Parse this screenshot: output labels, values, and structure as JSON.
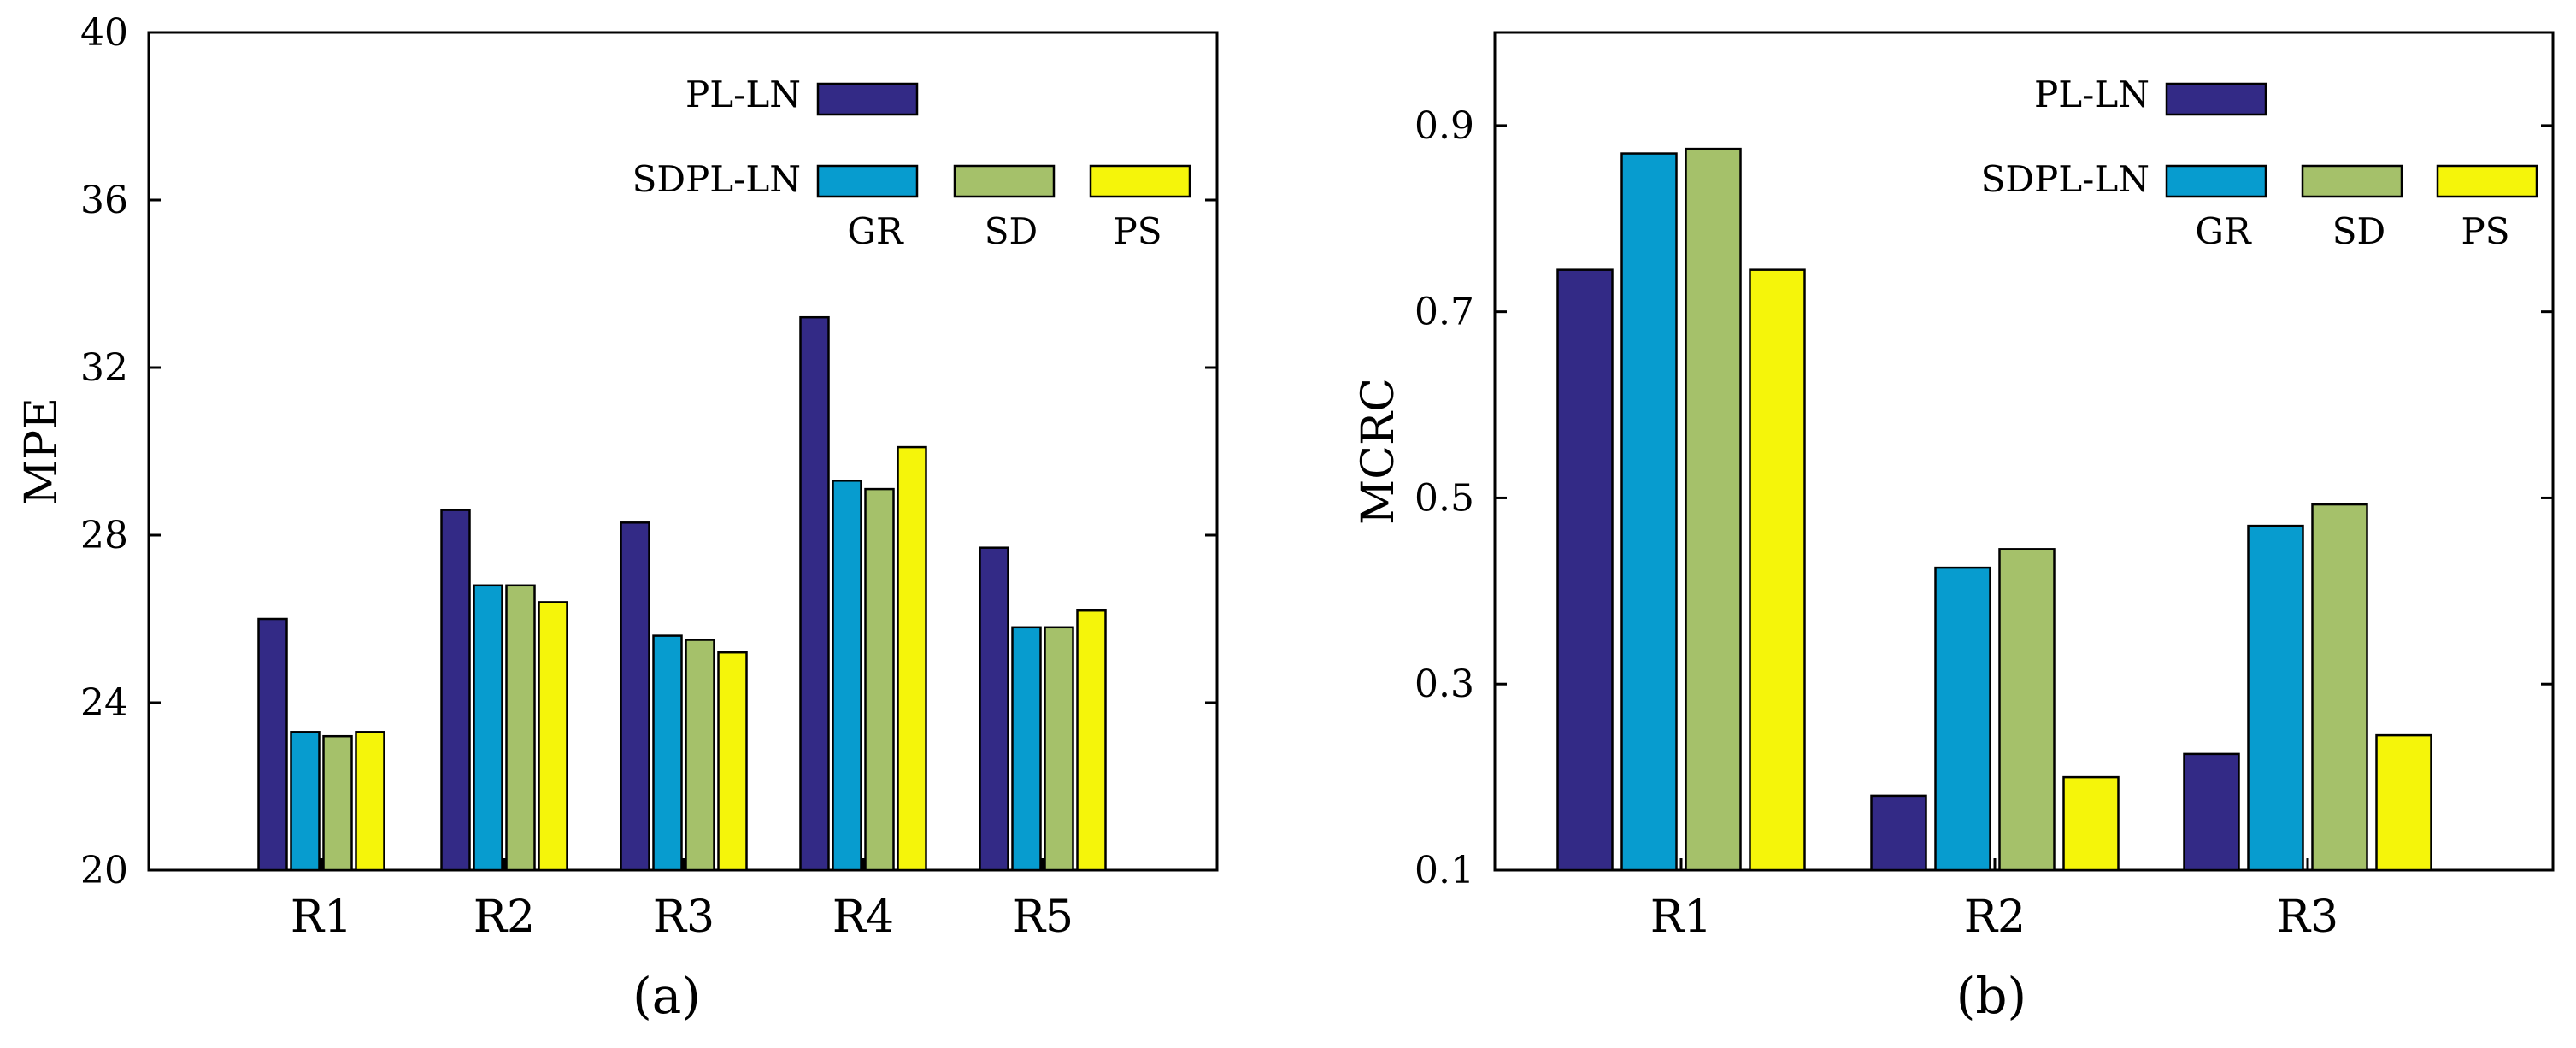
{
  "chart_data": [
    {
      "type": "bar",
      "caption": "(a)",
      "ylabel": "MPE",
      "xlabel": "",
      "ylim": [
        20,
        40
      ],
      "yticks": [
        20,
        24,
        28,
        32,
        36,
        40
      ],
      "categories": [
        "R1",
        "R2",
        "R3",
        "R4",
        "R5"
      ],
      "series": [
        {
          "name": "PL-LN",
          "color": "#332a86",
          "values": [
            26.0,
            28.6,
            28.3,
            33.2,
            27.7
          ]
        },
        {
          "name": "GR",
          "color": "#079ccf",
          "values": [
            23.3,
            26.8,
            25.6,
            29.3,
            25.8
          ]
        },
        {
          "name": "SD",
          "color": "#a5c16a",
          "values": [
            23.2,
            26.8,
            25.5,
            29.1,
            25.8
          ]
        },
        {
          "name": "PS",
          "color": "#f5f50a",
          "values": [
            23.3,
            26.4,
            25.2,
            30.1,
            26.2
          ]
        }
      ],
      "legend": {
        "group_label": "SDPL-LN",
        "placement": "top-right"
      },
      "grid": false
    },
    {
      "type": "bar",
      "caption": "(b)",
      "ylabel": "MCRC",
      "xlabel": "",
      "ylim": [
        0.1,
        1.0
      ],
      "yticks": [
        "0.1",
        "0.3",
        "0.5",
        "0.7",
        "0.9"
      ],
      "categories": [
        "R1",
        "R2",
        "R3"
      ],
      "series": [
        {
          "name": "PL-LN",
          "color": "#332a86",
          "values": [
            0.745,
            0.18,
            0.225
          ]
        },
        {
          "name": "GR",
          "color": "#079ccf",
          "values": [
            0.87,
            0.425,
            0.47
          ]
        },
        {
          "name": "SD",
          "color": "#a5c16a",
          "values": [
            0.875,
            0.445,
            0.493
          ]
        },
        {
          "name": "PS",
          "color": "#f5f50a",
          "values": [
            0.745,
            0.2,
            0.245
          ]
        }
      ],
      "legend": {
        "group_label": "SDPL-LN",
        "placement": "top-right"
      },
      "grid": false
    }
  ]
}
